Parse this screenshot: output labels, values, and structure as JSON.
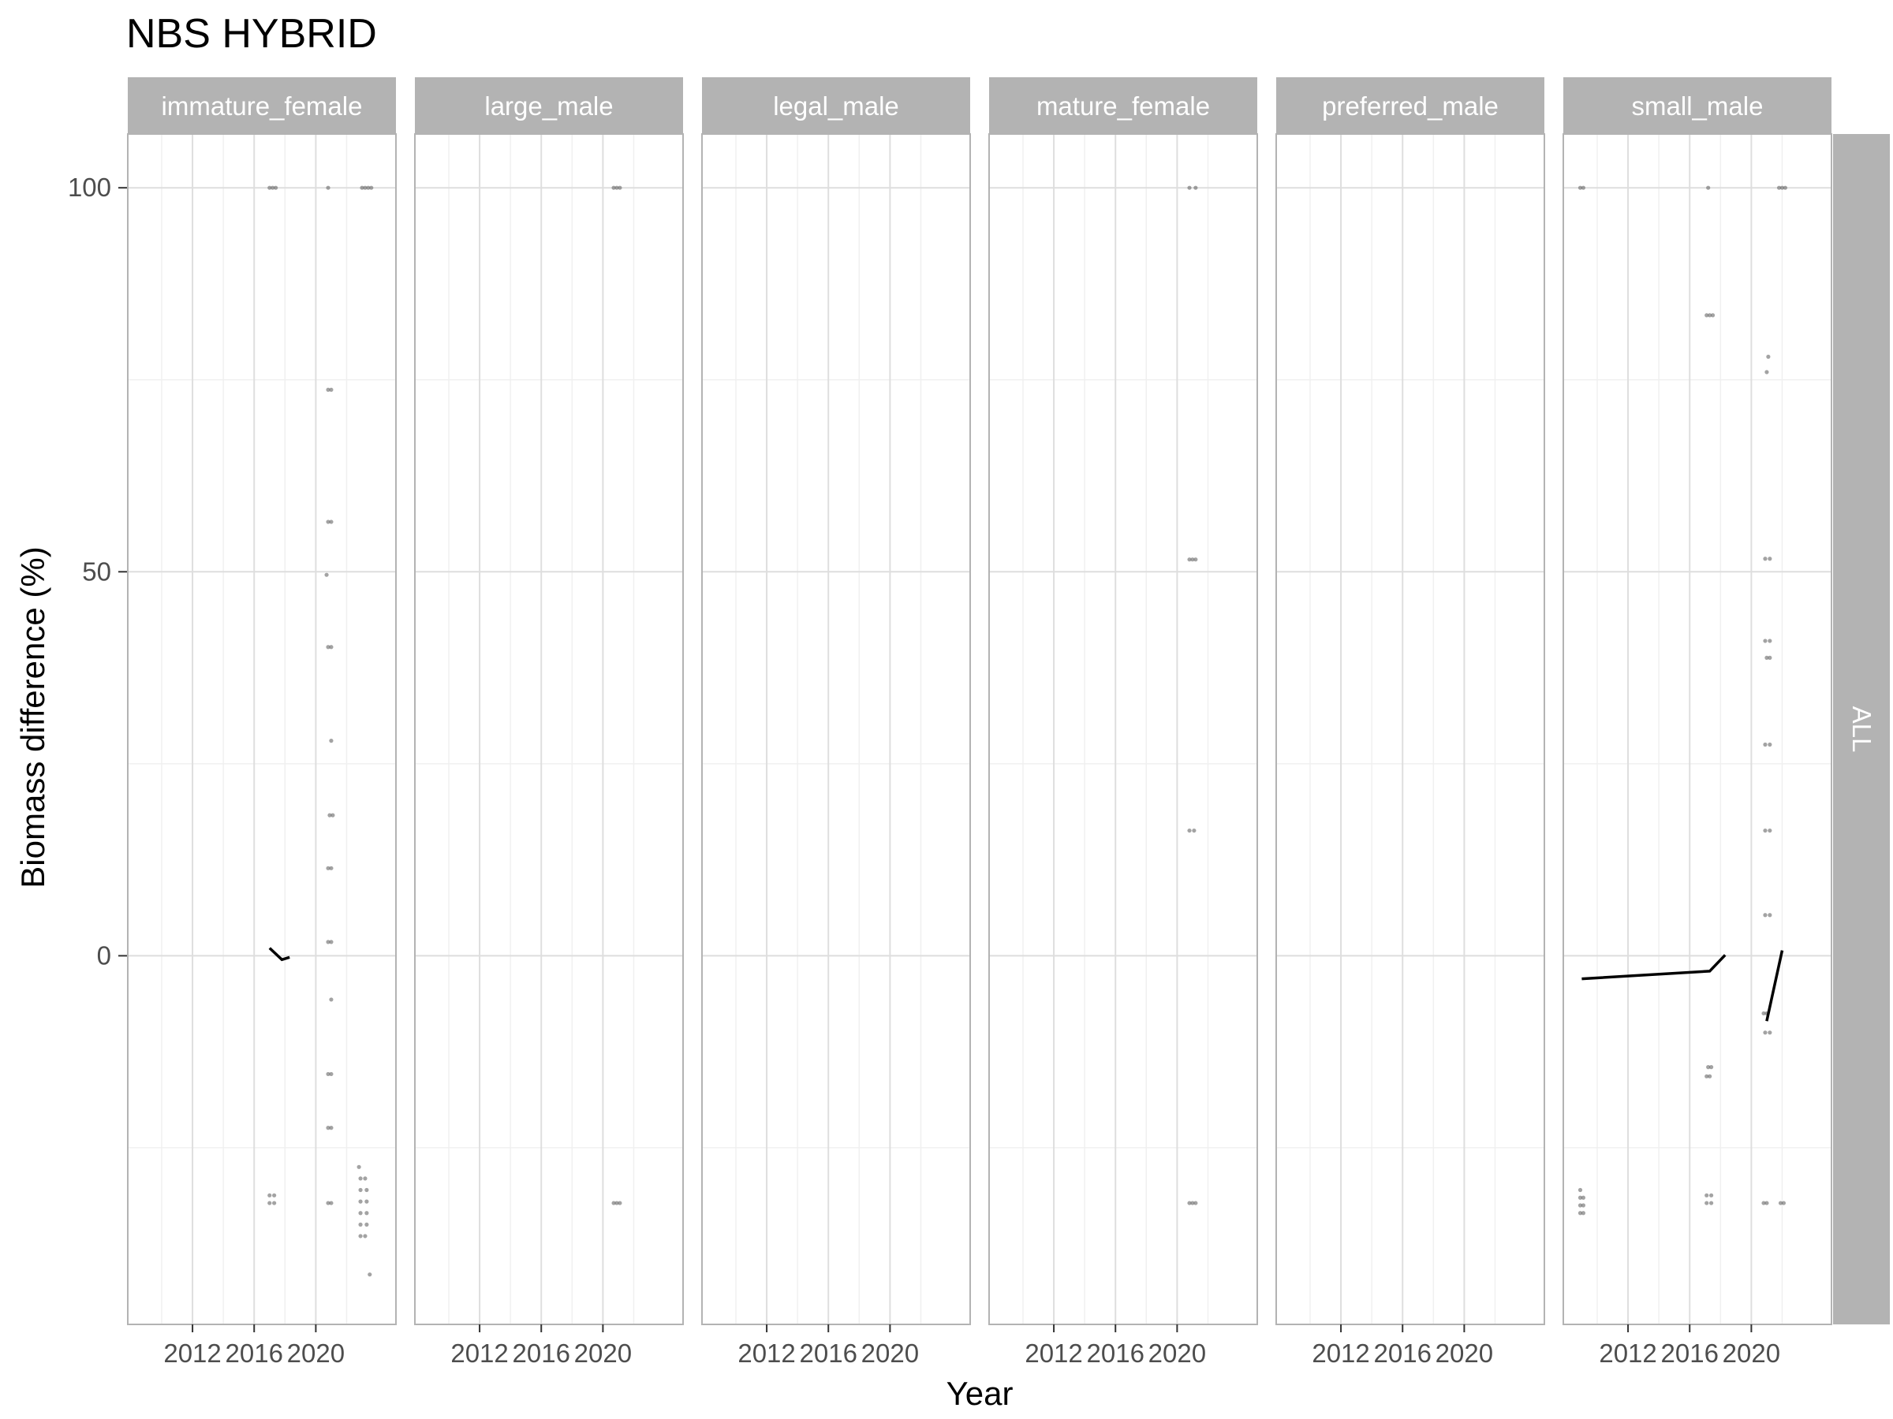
{
  "chart_data": {
    "type": "scatter",
    "title": "NBS HYBRID",
    "xlabel": "Year",
    "ylabel": "Biomass difference (%)",
    "row_strip": "ALL",
    "xlim": [
      2007.8,
      2025.2
    ],
    "ylim": [
      -48,
      107
    ],
    "x_ticks": [
      2012,
      2016,
      2020
    ],
    "y_ticks": [
      0,
      50,
      100
    ],
    "grid": true,
    "panels": [
      {
        "name": "immature_female",
        "points": [
          [
            2017.0,
            100
          ],
          [
            2017.2,
            100
          ],
          [
            2017.4,
            100
          ],
          [
            2020.8,
            100
          ],
          [
            2023.0,
            100
          ],
          [
            2023.2,
            100
          ],
          [
            2023.4,
            100
          ],
          [
            2023.6,
            100
          ],
          [
            2020.8,
            73.7
          ],
          [
            2021.0,
            73.7
          ],
          [
            2020.8,
            56.5
          ],
          [
            2021.0,
            56.5
          ],
          [
            2020.7,
            49.6
          ],
          [
            2020.8,
            40.2
          ],
          [
            2021.0,
            40.2
          ],
          [
            2021.0,
            28.0
          ],
          [
            2020.9,
            18.3
          ],
          [
            2021.1,
            18.3
          ],
          [
            2020.8,
            11.4
          ],
          [
            2021.0,
            11.4
          ],
          [
            2020.8,
            1.8
          ],
          [
            2021.0,
            1.8
          ],
          [
            2021.0,
            -5.7
          ],
          [
            2020.8,
            -15.4
          ],
          [
            2021.0,
            -15.4
          ],
          [
            2020.8,
            -22.4
          ],
          [
            2021.0,
            -22.4
          ],
          [
            2017.0,
            -31.2
          ],
          [
            2017.3,
            -31.2
          ],
          [
            2017.0,
            -32.2
          ],
          [
            2017.3,
            -32.2
          ],
          [
            2020.8,
            -32.2
          ],
          [
            2021.0,
            -32.2
          ],
          [
            2022.8,
            -27.5
          ],
          [
            2022.9,
            -29.0
          ],
          [
            2023.2,
            -29.0
          ],
          [
            2022.9,
            -30.5
          ],
          [
            2023.3,
            -30.5
          ],
          [
            2022.9,
            -32.0
          ],
          [
            2023.3,
            -32.0
          ],
          [
            2022.9,
            -33.5
          ],
          [
            2023.3,
            -33.5
          ],
          [
            2022.9,
            -35.0
          ],
          [
            2023.3,
            -35.0
          ],
          [
            2022.9,
            -36.5
          ],
          [
            2023.2,
            -36.5
          ],
          [
            2023.5,
            -41.5
          ]
        ],
        "lines": [
          [
            [
              2017.0,
              1.0
            ],
            [
              2017.8,
              -0.5
            ],
            [
              2018.3,
              -0.2
            ]
          ]
        ]
      },
      {
        "name": "large_male",
        "points": [
          [
            2020.7,
            100
          ],
          [
            2020.9,
            100
          ],
          [
            2021.1,
            100
          ],
          [
            2020.7,
            -32.2
          ],
          [
            2020.9,
            -32.2
          ],
          [
            2021.1,
            -32.2
          ]
        ],
        "lines": []
      },
      {
        "name": "legal_male",
        "points": [],
        "lines": []
      },
      {
        "name": "mature_female",
        "points": [
          [
            2020.8,
            100
          ],
          [
            2021.2,
            100
          ],
          [
            2020.8,
            51.6
          ],
          [
            2021.0,
            51.6
          ],
          [
            2021.2,
            51.6
          ],
          [
            2020.8,
            16.3
          ],
          [
            2021.1,
            16.3
          ],
          [
            2020.8,
            -32.2
          ],
          [
            2021.0,
            -32.2
          ],
          [
            2021.2,
            -32.2
          ]
        ],
        "lines": []
      },
      {
        "name": "preferred_male",
        "points": [],
        "lines": []
      },
      {
        "name": "small_male",
        "points": [
          [
            2008.9,
            100
          ],
          [
            2009.1,
            100
          ],
          [
            2017.2,
            100
          ],
          [
            2021.8,
            100
          ],
          [
            2022.0,
            100
          ],
          [
            2022.2,
            100
          ],
          [
            2017.1,
            83.4
          ],
          [
            2017.3,
            83.4
          ],
          [
            2017.5,
            83.4
          ],
          [
            2021.1,
            78.0
          ],
          [
            2021.0,
            76.0
          ],
          [
            2020.9,
            51.7
          ],
          [
            2021.2,
            51.7
          ],
          [
            2020.9,
            41.0
          ],
          [
            2021.2,
            41.0
          ],
          [
            2021.0,
            38.8
          ],
          [
            2021.2,
            38.8
          ],
          [
            2020.9,
            27.5
          ],
          [
            2021.2,
            27.5
          ],
          [
            2020.9,
            16.3
          ],
          [
            2021.2,
            16.3
          ],
          [
            2020.9,
            5.3
          ],
          [
            2021.2,
            5.3
          ],
          [
            2017.2,
            -14.5
          ],
          [
            2017.4,
            -14.5
          ],
          [
            2017.1,
            -15.7
          ],
          [
            2017.3,
            -15.7
          ],
          [
            2020.8,
            -7.5
          ],
          [
            2021.0,
            -7.5
          ],
          [
            2020.9,
            -10.0
          ],
          [
            2021.2,
            -10.0
          ],
          [
            2008.9,
            -30.5
          ],
          [
            2008.9,
            -31.5
          ],
          [
            2009.1,
            -31.5
          ],
          [
            2008.9,
            -32.5
          ],
          [
            2009.1,
            -32.5
          ],
          [
            2008.9,
            -33.5
          ],
          [
            2009.1,
            -33.5
          ],
          [
            2017.1,
            -31.2
          ],
          [
            2017.4,
            -31.2
          ],
          [
            2017.1,
            -32.2
          ],
          [
            2017.4,
            -32.2
          ],
          [
            2020.8,
            -32.2
          ],
          [
            2021.0,
            -32.2
          ],
          [
            2021.9,
            -32.2
          ],
          [
            2022.1,
            -32.2
          ]
        ],
        "lines": [
          [
            [
              2009.0,
              -3.0
            ],
            [
              2017.3,
              -2.0
            ],
            [
              2018.3,
              0.1
            ]
          ],
          [
            [
              2021.0,
              -8.5
            ],
            [
              2022.0,
              0.7
            ]
          ]
        ]
      }
    ]
  }
}
